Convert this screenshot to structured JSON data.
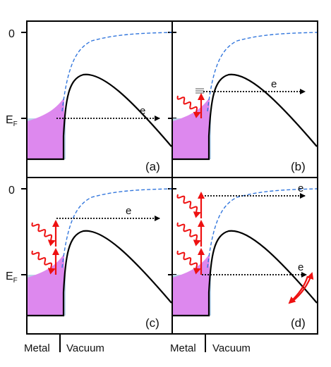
{
  "figure": {
    "y_tick_zero_top": "0",
    "y_tick_zero_bottom": "0",
    "fermi_label_top_base": "E",
    "fermi_label_top_sub": "F",
    "fermi_label_bottom_base": "E",
    "fermi_label_bottom_sub": "F",
    "x_label_metal_left": "Metal",
    "x_label_vacuum_left": "Vacuum",
    "x_label_metal_right": "Metal",
    "x_label_vacuum_right": "Vacuum"
  },
  "panels": [
    {
      "id": "a",
      "label": "(a)",
      "electron_label": "e",
      "photons": 0
    },
    {
      "id": "b",
      "label": "(b)",
      "electron_label": "e",
      "photons": 1
    },
    {
      "id": "c",
      "label": "(c)",
      "electron_label": "e",
      "photons": 2
    },
    {
      "id": "d",
      "label": "(d)",
      "electron_label": "e",
      "electron_label_2": "e",
      "photons": 3
    }
  ],
  "colors": {
    "fermi_fill": "#dd88ee",
    "metal_base": "#bbd4e8",
    "vacuum_dashed": "#3377dd",
    "potential": "#000000",
    "photon": "#ee1111"
  }
}
